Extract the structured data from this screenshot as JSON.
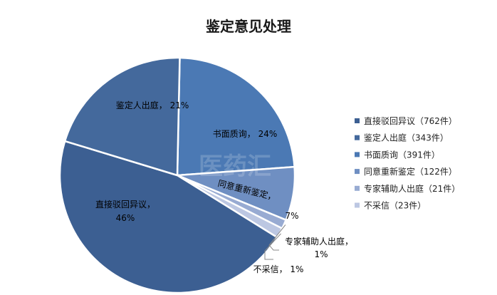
{
  "chart_data": {
    "type": "pie",
    "title": "鉴定意见处理",
    "legend_position": "right",
    "series": [
      {
        "name": "直接驳回异议",
        "count": 762,
        "value": 46,
        "legend": "直接驳回异议（762件）",
        "label_name": "直接驳回异议，",
        "label_value": "46%",
        "color": "#3c5f92"
      },
      {
        "name": "鉴定人出庭",
        "count": 343,
        "value": 21,
        "legend": "鉴定人出庭（343件）",
        "label_name": "鉴定人出庭，",
        "label_value": "21%",
        "color": "#44699c"
      },
      {
        "name": "书面质询",
        "count": 391,
        "value": 24,
        "legend": "书面质询（391件）",
        "label_name": "书面质询，",
        "label_value": "24%",
        "color": "#4b79b4"
      },
      {
        "name": "同意重新鉴定",
        "count": 122,
        "value": 7,
        "legend": "同意重新鉴定（122件）",
        "label_name": "同意重新鉴定，",
        "label_value": "7%",
        "color": "#6f8fc2"
      },
      {
        "name": "专家辅助人出庭",
        "count": 21,
        "value": 1,
        "legend": "专家辅助人出庭（21件）",
        "label_name": "专家辅助人出庭，",
        "label_value": "1%",
        "color": "#98abd2"
      },
      {
        "name": "不采信",
        "count": 23,
        "value": 1,
        "legend": "不采信（23件）",
        "label_name": "不采信，",
        "label_value": "1%",
        "color": "#bcc7e2"
      }
    ]
  },
  "watermark": "医药汇"
}
